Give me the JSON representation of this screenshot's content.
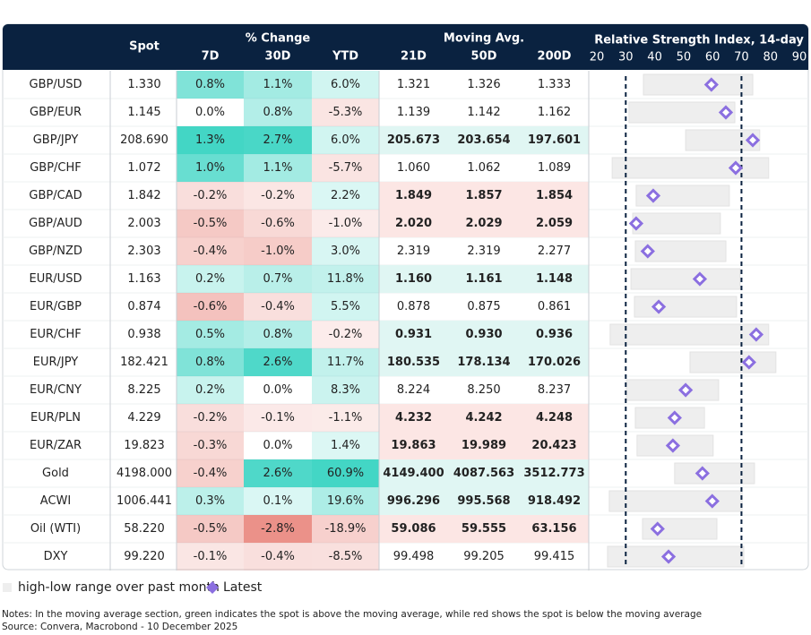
{
  "header": {
    "spot": "Spot",
    "pct_change": "% Change",
    "moving_avg": "Moving Avg.",
    "rsi": "Relative Strength Index, 14-day",
    "columns": [
      "7D",
      "30D",
      "YTD",
      "21D",
      "50D",
      "200D"
    ]
  },
  "rsi_axis": {
    "xlim": [
      20,
      90
    ],
    "xticks": [
      20,
      30,
      40,
      50,
      60,
      70,
      80,
      90
    ],
    "reference_lines": [
      30,
      70
    ]
  },
  "rows": [
    {
      "name": "GBP/USD",
      "spot": "1.330",
      "change": [
        "0.8%",
        "1.1%",
        "6.0%"
      ],
      "ma": [
        "1.321",
        "1.326",
        "1.333"
      ],
      "rsi_low": 36.1,
      "rsi_high": 73.9,
      "rsi_latest": 59.6
    },
    {
      "name": "GBP/EUR",
      "spot": "1.145",
      "change": [
        "0.0%",
        "0.8%",
        "-5.3%"
      ],
      "ma": [
        "1.139",
        "1.142",
        "1.162"
      ],
      "rsi_low": 31.1,
      "rsi_high": 67.7,
      "rsi_latest": 64.6
    },
    {
      "name": "GBP/JPY",
      "spot": "208.690",
      "change": [
        "1.3%",
        "2.7%",
        "6.0%"
      ],
      "ma": [
        "205.673",
        "203.654",
        "197.601"
      ],
      "rsi_low": 50.7,
      "rsi_high": 76.3,
      "rsi_latest": 73.9
    },
    {
      "name": "GBP/CHF",
      "spot": "1.072",
      "change": [
        "1.0%",
        "1.1%",
        "-5.7%"
      ],
      "ma": [
        "1.060",
        "1.062",
        "1.089"
      ],
      "rsi_low": 25.3,
      "rsi_high": 79.4,
      "rsi_latest": 68
    },
    {
      "name": "GBP/CAD",
      "spot": "1.842",
      "change": [
        "-0.2%",
        "-0.2%",
        "2.2%"
      ],
      "ma": [
        "1.849",
        "1.857",
        "1.854"
      ],
      "rsi_low": 33.6,
      "rsi_high": 65.8,
      "rsi_latest": 39.5
    },
    {
      "name": "GBP/AUD",
      "spot": "2.003",
      "change": [
        "-0.5%",
        "-0.6%",
        "-1.0%"
      ],
      "ma": [
        "2.020",
        "2.029",
        "2.059"
      ],
      "rsi_low": 32.4,
      "rsi_high": 62.7,
      "rsi_latest": 33.6
    },
    {
      "name": "GBP/NZD",
      "spot": "2.303",
      "change": [
        "-0.4%",
        "-1.0%",
        "3.0%"
      ],
      "ma": [
        "2.319",
        "2.319",
        "2.277"
      ],
      "rsi_low": 33.3,
      "rsi_high": 64.6,
      "rsi_latest": 37.6
    },
    {
      "name": "EUR/USD",
      "spot": "1.163",
      "change": [
        "0.2%",
        "0.7%",
        "11.8%"
      ],
      "ma": [
        "1.160",
        "1.161",
        "1.148"
      ],
      "rsi_low": 31.8,
      "rsi_high": 69.5,
      "rsi_latest": 55.6
    },
    {
      "name": "EUR/GBP",
      "spot": "0.874",
      "change": [
        "-0.6%",
        "-0.4%",
        "5.5%"
      ],
      "ma": [
        "0.878",
        "0.875",
        "0.861"
      ],
      "rsi_low": 33,
      "rsi_high": 68.3,
      "rsi_latest": 41.4
    },
    {
      "name": "EUR/CHF",
      "spot": "0.938",
      "change": [
        "0.5%",
        "0.8%",
        "-0.2%"
      ],
      "ma": [
        "0.931",
        "0.930",
        "0.936"
      ],
      "rsi_low": 24.6,
      "rsi_high": 79.4,
      "rsi_latest": 75.1
    },
    {
      "name": "EUR/JPY",
      "spot": "182.421",
      "change": [
        "0.8%",
        "2.6%",
        "11.7%"
      ],
      "ma": [
        "180.535",
        "178.134",
        "170.026"
      ],
      "rsi_low": 52.2,
      "rsi_high": 81.9,
      "rsi_latest": 72.6
    },
    {
      "name": "EUR/CNY",
      "spot": "8.225",
      "change": [
        "0.2%",
        "0.0%",
        "8.3%"
      ],
      "ma": [
        "8.224",
        "8.250",
        "8.237"
      ],
      "rsi_low": 30.2,
      "rsi_high": 62.1,
      "rsi_latest": 50.7
    },
    {
      "name": "EUR/PLN",
      "spot": "4.229",
      "change": [
        "-0.2%",
        "-0.1%",
        "-1.1%"
      ],
      "ma": [
        "4.232",
        "4.242",
        "4.248"
      ],
      "rsi_low": 33.3,
      "rsi_high": 57.2,
      "rsi_latest": 46.9
    },
    {
      "name": "EUR/ZAR",
      "spot": "19.823",
      "change": [
        "-0.3%",
        "0.0%",
        "1.4%"
      ],
      "ma": [
        "19.863",
        "19.989",
        "20.423"
      ],
      "rsi_low": 33.9,
      "rsi_high": 60.2,
      "rsi_latest": 46.3
    },
    {
      "name": "Gold",
      "spot": "4198.000",
      "change": [
        "-0.4%",
        "2.6%",
        "60.9%"
      ],
      "ma": [
        "4149.400",
        "4087.563",
        "3512.773"
      ],
      "rsi_low": 46.9,
      "rsi_high": 74.5,
      "rsi_latest": 56.5
    },
    {
      "name": "ACWI",
      "spot": "1006.441",
      "change": [
        "0.3%",
        "0.1%",
        "19.6%"
      ],
      "ma": [
        "996.296",
        "995.568",
        "918.492"
      ],
      "rsi_low": 24.3,
      "rsi_high": 70.2,
      "rsi_latest": 59.9
    },
    {
      "name": "Oil (WTI)",
      "spot": "58.220",
      "change": [
        "-0.5%",
        "-2.8%",
        "-18.9%"
      ],
      "ma": [
        "59.086",
        "59.555",
        "63.156"
      ],
      "rsi_low": 35.8,
      "rsi_high": 61.5,
      "rsi_latest": 41
    },
    {
      "name": "DXY",
      "spot": "99.220",
      "change": [
        "-0.1%",
        "-0.4%",
        "-8.5%"
      ],
      "ma": [
        "99.498",
        "99.205",
        "99.415"
      ],
      "rsi_low": 23.7,
      "rsi_high": 70.8,
      "rsi_latest": 44.8
    }
  ],
  "legend": {
    "range": "high-low range over past month",
    "latest": "Latest"
  },
  "notes": "Notes: In the moving average section, green indicates the spot is above the moving average, while red shows the spot is below the moving average",
  "source": "Source: Convera, Macrobond - 10 December 2025"
}
